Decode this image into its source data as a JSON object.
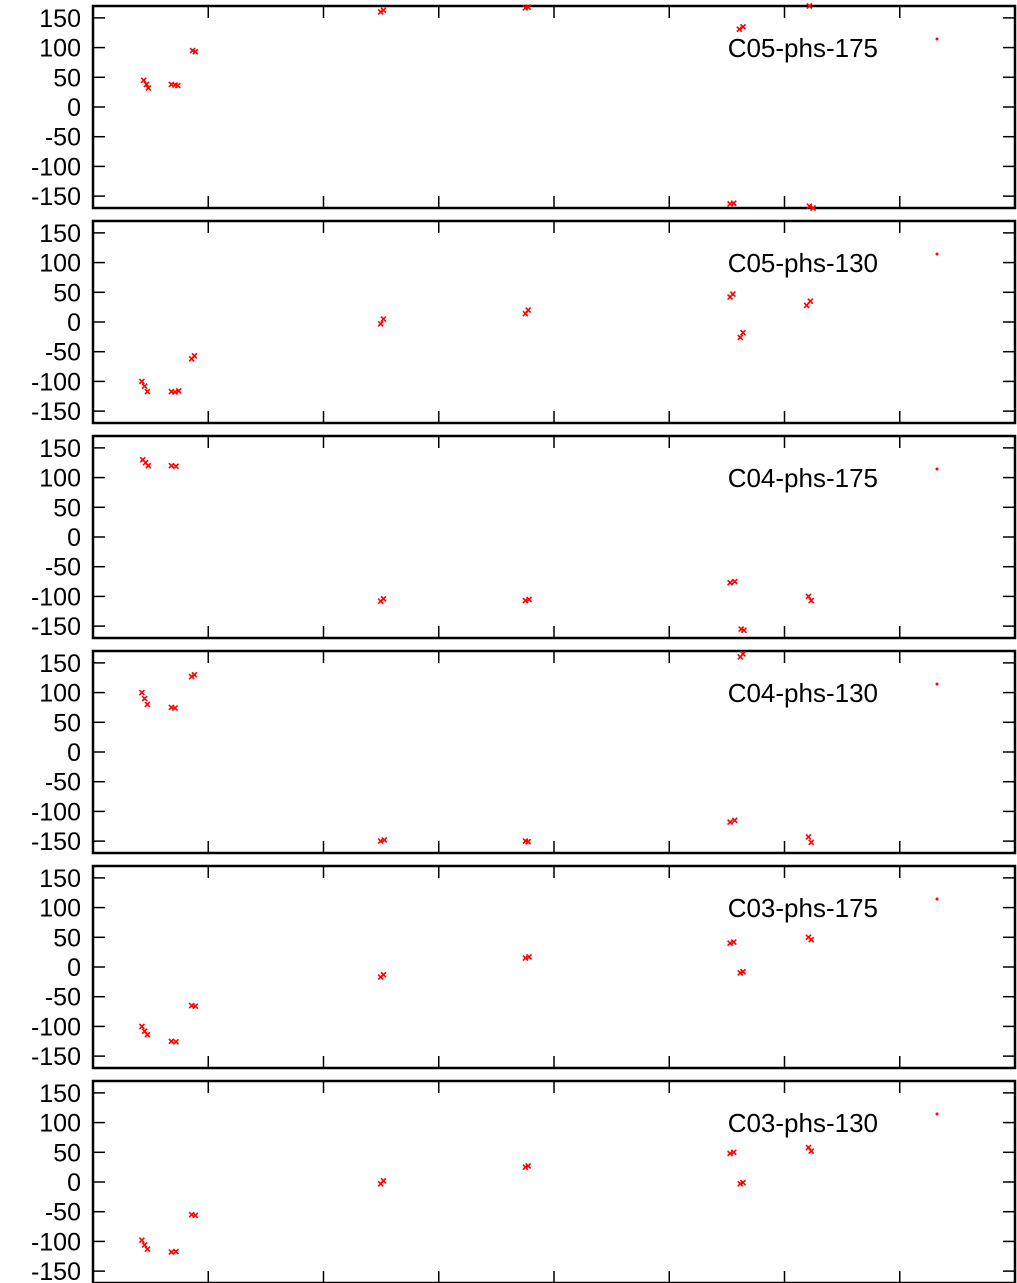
{
  "chart_data": {
    "type": "scatter",
    "layout": "stacked-panels",
    "ylim": [
      170,
      -170
    ],
    "yticks": [
      "-150",
      "-100",
      "-50",
      "0",
      "50",
      "100",
      "150"
    ],
    "ytick_values": [
      -150,
      -100,
      -50,
      0,
      50,
      100,
      150
    ],
    "xlim": [
      0,
      1
    ],
    "x_major_ticks": [
      0.125,
      0.25,
      0.375,
      0.5,
      0.625,
      0.75,
      0.875
    ],
    "marker_color": "#ff0000",
    "legend_position": "top-right",
    "panels": [
      {
        "legend": "C05-phs-175",
        "points": [
          {
            "x": 0.055,
            "y": 45
          },
          {
            "x": 0.058,
            "y": 38
          },
          {
            "x": 0.06,
            "y": 32
          },
          {
            "x": 0.085,
            "y": 38
          },
          {
            "x": 0.089,
            "y": 37
          },
          {
            "x": 0.092,
            "y": 36
          },
          {
            "x": 0.108,
            "y": 95
          },
          {
            "x": 0.111,
            "y": 93
          },
          {
            "x": 0.312,
            "y": 160
          },
          {
            "x": 0.315,
            "y": 163
          },
          {
            "x": 0.469,
            "y": 167
          },
          {
            "x": 0.472,
            "y": 168
          },
          {
            "x": 0.691,
            "y": -163
          },
          {
            "x": 0.695,
            "y": -162
          },
          {
            "x": 0.701,
            "y": 131
          },
          {
            "x": 0.705,
            "y": 135
          },
          {
            "x": 0.777,
            "y": -167
          },
          {
            "x": 0.781,
            "y": -170
          },
          {
            "x": 0.777,
            "y": 170
          }
        ]
      },
      {
        "legend": "C05-phs-130",
        "points": [
          {
            "x": 0.053,
            "y": -100
          },
          {
            "x": 0.056,
            "y": -108
          },
          {
            "x": 0.059,
            "y": -117
          },
          {
            "x": 0.085,
            "y": -117
          },
          {
            "x": 0.089,
            "y": -118
          },
          {
            "x": 0.093,
            "y": -116
          },
          {
            "x": 0.107,
            "y": -62
          },
          {
            "x": 0.11,
            "y": -57
          },
          {
            "x": 0.312,
            "y": -3
          },
          {
            "x": 0.315,
            "y": 5
          },
          {
            "x": 0.469,
            "y": 14
          },
          {
            "x": 0.472,
            "y": 20
          },
          {
            "x": 0.691,
            "y": 42
          },
          {
            "x": 0.694,
            "y": 47
          },
          {
            "x": 0.702,
            "y": -26
          },
          {
            "x": 0.705,
            "y": -18
          },
          {
            "x": 0.774,
            "y": 28
          },
          {
            "x": 0.778,
            "y": 35
          }
        ]
      },
      {
        "legend": "C04-phs-175",
        "points": [
          {
            "x": 0.054,
            "y": 130
          },
          {
            "x": 0.057,
            "y": 125
          },
          {
            "x": 0.06,
            "y": 120
          },
          {
            "x": 0.085,
            "y": 120
          },
          {
            "x": 0.09,
            "y": 119
          },
          {
            "x": 0.107,
            "y": 172
          },
          {
            "x": 0.111,
            "y": 171
          },
          {
            "x": 0.312,
            "y": -108
          },
          {
            "x": 0.315,
            "y": -104
          },
          {
            "x": 0.469,
            "y": -107
          },
          {
            "x": 0.473,
            "y": -105
          },
          {
            "x": 0.691,
            "y": -77
          },
          {
            "x": 0.696,
            "y": -75
          },
          {
            "x": 0.703,
            "y": -155
          },
          {
            "x": 0.706,
            "y": -157
          },
          {
            "x": 0.776,
            "y": -100
          },
          {
            "x": 0.779,
            "y": -107
          }
        ]
      },
      {
        "legend": "C04-phs-130",
        "points": [
          {
            "x": 0.053,
            "y": 100
          },
          {
            "x": 0.056,
            "y": 90
          },
          {
            "x": 0.059,
            "y": 80
          },
          {
            "x": 0.085,
            "y": 75
          },
          {
            "x": 0.089,
            "y": 74
          },
          {
            "x": 0.107,
            "y": 127
          },
          {
            "x": 0.11,
            "y": 130
          },
          {
            "x": 0.312,
            "y": -150
          },
          {
            "x": 0.316,
            "y": -148
          },
          {
            "x": 0.469,
            "y": -150
          },
          {
            "x": 0.472,
            "y": -151
          },
          {
            "x": 0.691,
            "y": -118
          },
          {
            "x": 0.696,
            "y": -115
          },
          {
            "x": 0.702,
            "y": 160
          },
          {
            "x": 0.705,
            "y": 165
          },
          {
            "x": 0.776,
            "y": -143
          },
          {
            "x": 0.779,
            "y": -152
          }
        ]
      },
      {
        "legend": "C03-phs-175",
        "points": [
          {
            "x": 0.053,
            "y": -100
          },
          {
            "x": 0.056,
            "y": -108
          },
          {
            "x": 0.059,
            "y": -114
          },
          {
            "x": 0.085,
            "y": -125
          },
          {
            "x": 0.09,
            "y": -126
          },
          {
            "x": 0.107,
            "y": -65
          },
          {
            "x": 0.111,
            "y": -66
          },
          {
            "x": 0.312,
            "y": -17
          },
          {
            "x": 0.315,
            "y": -13
          },
          {
            "x": 0.469,
            "y": 15
          },
          {
            "x": 0.473,
            "y": 17
          },
          {
            "x": 0.691,
            "y": 40
          },
          {
            "x": 0.695,
            "y": 42
          },
          {
            "x": 0.702,
            "y": -10
          },
          {
            "x": 0.705,
            "y": -8
          },
          {
            "x": 0.776,
            "y": 50
          },
          {
            "x": 0.779,
            "y": 46
          }
        ]
      },
      {
        "legend": "C03-phs-130",
        "points": [
          {
            "x": 0.053,
            "y": -98
          },
          {
            "x": 0.056,
            "y": -106
          },
          {
            "x": 0.059,
            "y": -113
          },
          {
            "x": 0.085,
            "y": -118
          },
          {
            "x": 0.09,
            "y": -117
          },
          {
            "x": 0.107,
            "y": -55
          },
          {
            "x": 0.111,
            "y": -56
          },
          {
            "x": 0.312,
            "y": -3
          },
          {
            "x": 0.315,
            "y": 2
          },
          {
            "x": 0.469,
            "y": 25
          },
          {
            "x": 0.472,
            "y": 27
          },
          {
            "x": 0.691,
            "y": 48
          },
          {
            "x": 0.695,
            "y": 50
          },
          {
            "x": 0.702,
            "y": -3
          },
          {
            "x": 0.705,
            "y": -1
          },
          {
            "x": 0.776,
            "y": 58
          },
          {
            "x": 0.779,
            "y": 52
          }
        ]
      }
    ]
  }
}
